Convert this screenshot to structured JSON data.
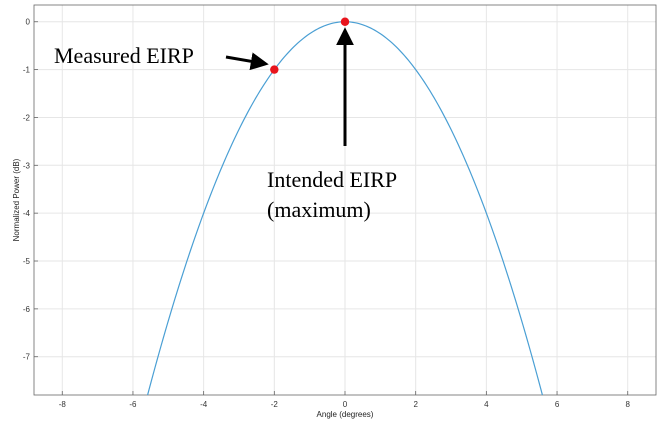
{
  "chart_data": {
    "type": "line",
    "xlabel": "Angle (degrees)",
    "ylabel": "Normalized Power (dB)",
    "xlim": [
      -8.8,
      8.8
    ],
    "ylim": [
      -7.8,
      0.35
    ],
    "x_ticks": [
      -8,
      -6,
      -4,
      -2,
      0,
      2,
      4,
      6,
      8
    ],
    "y_ticks": [
      0,
      -1,
      -2,
      -3,
      -4,
      -5,
      -6,
      -7
    ],
    "grid": true,
    "series": [
      {
        "color": "#4a9fd4",
        "curve": "-0.25 * x^2",
        "x": [
          -5.6,
          -5.0,
          -4.5,
          -4.0,
          -3.5,
          -3.0,
          -2.5,
          -2.0,
          -1.5,
          -1.0,
          -0.5,
          0,
          0.5,
          1.0,
          1.5,
          2.0,
          2.5,
          3.0,
          3.5,
          4.0,
          4.5,
          5.0,
          5.6
        ],
        "y": [
          -7.84,
          -6.25,
          -5.06,
          -4.0,
          -3.06,
          -2.25,
          -1.56,
          -1.0,
          -0.56,
          -0.25,
          -0.06,
          0,
          -0.06,
          -0.25,
          -0.56,
          -1.0,
          -1.56,
          -2.25,
          -3.06,
          -4.0,
          -5.06,
          -6.25,
          -7.84
        ]
      }
    ],
    "points": [
      {
        "x": -2,
        "y": -1,
        "color": "#e8141c"
      },
      {
        "x": 0,
        "y": 0,
        "color": "#e8141c"
      }
    ],
    "annotations": [
      {
        "lines": [
          "Measured EIRP"
        ],
        "points_to": {
          "x": -2,
          "y": -1
        }
      },
      {
        "lines": [
          "Intended EIRP",
          "(maximum)"
        ],
        "points_to": {
          "x": 0,
          "y": 0
        }
      }
    ]
  }
}
